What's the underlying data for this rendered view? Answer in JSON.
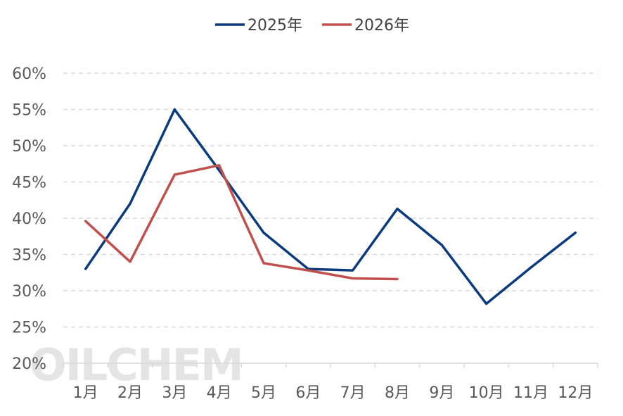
{
  "chart_data": {
    "type": "line",
    "categories": [
      "1月",
      "2月",
      "3月",
      "4月",
      "5月",
      "6月",
      "7月",
      "8月",
      "9月",
      "10月",
      "11月",
      "12月"
    ],
    "y_ticks": [
      "20%",
      "25%",
      "30%",
      "35%",
      "40%",
      "45%",
      "50%",
      "55%",
      "60%"
    ],
    "ylim": [
      20,
      60
    ],
    "grid": true,
    "legend_position": "top-center",
    "series": [
      {
        "name": "2025年",
        "color": "#0b3a7e",
        "values": [
          33.0,
          42.0,
          55.0,
          46.6,
          38.0,
          33.0,
          32.8,
          41.3,
          36.3,
          28.2,
          33.2,
          38.0
        ]
      },
      {
        "name": "2026年",
        "color": "#c0504d",
        "values": [
          39.6,
          34.0,
          46.0,
          47.3,
          33.8,
          32.8,
          31.7,
          31.6,
          null,
          null,
          null,
          null
        ]
      }
    ]
  },
  "watermark": "OILCHEM"
}
